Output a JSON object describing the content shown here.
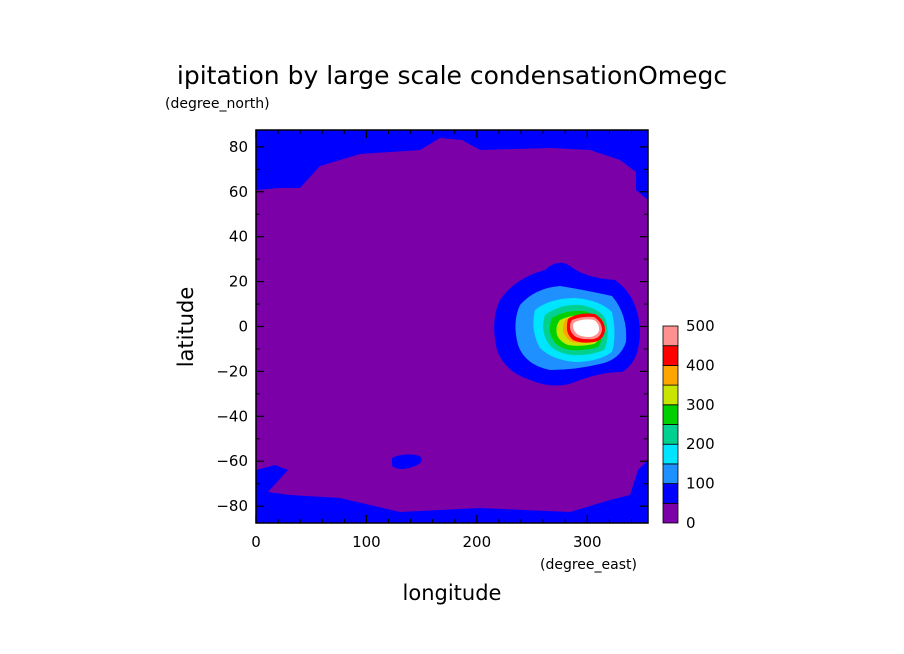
{
  "chart_data": {
    "type": "heatmap",
    "title": "ipitation by large scale condensationOmegc",
    "xlabel": "longitude",
    "ylabel": "latitude",
    "x_unit": "(degree_east)",
    "y_unit": "(degree_north)",
    "xlim": [
      0,
      355
    ],
    "ylim": [
      -87.5,
      87.5
    ],
    "x_ticks": [
      0,
      100,
      200,
      300
    ],
    "y_ticks": [
      -80,
      -60,
      -40,
      -20,
      0,
      20,
      40,
      60,
      80
    ],
    "colorbar": {
      "levels": [
        0,
        50,
        100,
        150,
        200,
        250,
        300,
        350,
        400,
        450,
        500
      ],
      "labels": [
        "0",
        "100",
        "200",
        "300",
        "400",
        "500"
      ],
      "label_values": [
        0,
        100,
        200,
        300,
        400,
        500
      ],
      "colors": [
        "#7b00a8",
        "#0000ff",
        "#1e90ff",
        "#00e5ff",
        "#00d090",
        "#00d000",
        "#c8e400",
        "#ffa500",
        "#ff0000",
        "#ff9090"
      ]
    },
    "field": {
      "background_level": "0-50",
      "polar_level": "50-100",
      "maximum": {
        "x": 300,
        "y": 0,
        "value": 500
      }
    }
  }
}
